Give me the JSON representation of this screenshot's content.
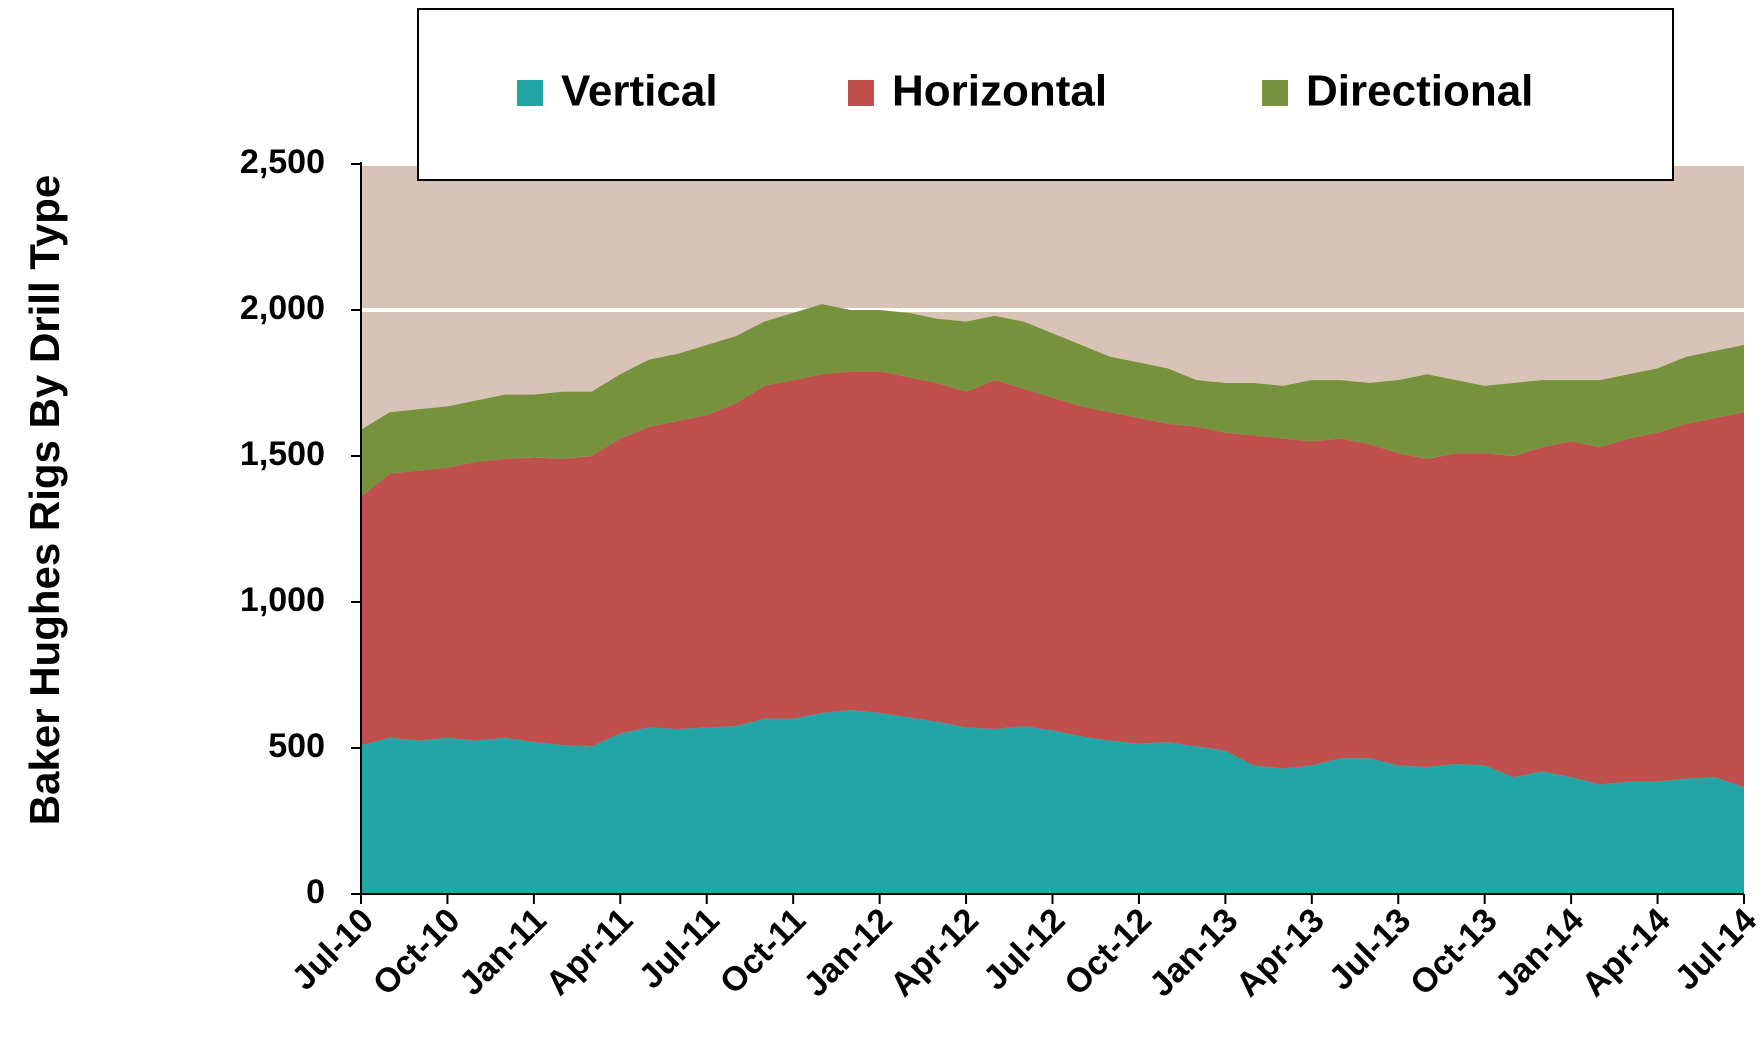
{
  "chart_data": {
    "type": "area",
    "stacked": true,
    "y_label": "Baker Hughes Rigs By Drill Type",
    "categories": [
      "Jul-10",
      null,
      null,
      "Oct-10",
      null,
      null,
      "Jan-11",
      null,
      null,
      "Apr-11",
      null,
      null,
      "Jul-11",
      null,
      null,
      "Oct-11",
      null,
      null,
      "Jan-12",
      null,
      null,
      "Apr-12",
      null,
      null,
      "Jul-12",
      null,
      null,
      "Oct-12",
      null,
      null,
      "Jan-13",
      null,
      null,
      "Apr-13",
      null,
      null,
      "Jul-13",
      null,
      null,
      "Oct-13",
      null,
      null,
      "Jan-14",
      null,
      null,
      "Apr-14",
      null,
      null,
      "Jul-14"
    ],
    "series": [
      {
        "name": "Vertical",
        "color": "#24a5a5",
        "values": [
          510,
          535,
          525,
          535,
          525,
          535,
          520,
          510,
          505,
          550,
          570,
          565,
          570,
          575,
          600,
          600,
          620,
          630,
          620,
          605,
          590,
          570,
          565,
          575,
          560,
          540,
          525,
          515,
          520,
          505,
          490,
          440,
          430,
          440,
          465,
          465,
          440,
          435,
          445,
          440,
          400,
          420,
          400,
          375,
          385,
          385,
          395,
          400,
          365
        ]
      },
      {
        "name": "Horizontal",
        "color": "#c0504d",
        "values": [
          850,
          905,
          925,
          925,
          955,
          955,
          975,
          980,
          995,
          1010,
          1030,
          1055,
          1070,
          1105,
          1140,
          1160,
          1160,
          1160,
          1170,
          1165,
          1160,
          1150,
          1195,
          1155,
          1140,
          1130,
          1125,
          1115,
          1090,
          1095,
          1090,
          1130,
          1130,
          1110,
          1095,
          1075,
          1070,
          1055,
          1065,
          1070,
          1100,
          1110,
          1150,
          1155,
          1175,
          1195,
          1215,
          1230,
          1285
        ]
      },
      {
        "name": "Directional",
        "color": "#76923c",
        "values": [
          230,
          210,
          210,
          210,
          210,
          220,
          215,
          230,
          220,
          220,
          230,
          230,
          240,
          230,
          220,
          230,
          240,
          210,
          210,
          220,
          220,
          240,
          220,
          230,
          220,
          210,
          190,
          190,
          190,
          160,
          170,
          180,
          180,
          210,
          200,
          210,
          250,
          290,
          250,
          230,
          250,
          230,
          210,
          230,
          220,
          220,
          230,
          230,
          230
        ]
      }
    ],
    "ylim": [
      0,
      2500
    ],
    "yticks": [
      0,
      500,
      {
        "value": 1000,
        "label": "1,000"
      },
      {
        "value": 1500,
        "label": "1,500"
      },
      {
        "value": 2000,
        "label": "2,000"
      },
      {
        "value": 2500,
        "label": "2,500"
      }
    ],
    "grid": true,
    "plot_background": "#d9c3b6",
    "legend": "top"
  }
}
